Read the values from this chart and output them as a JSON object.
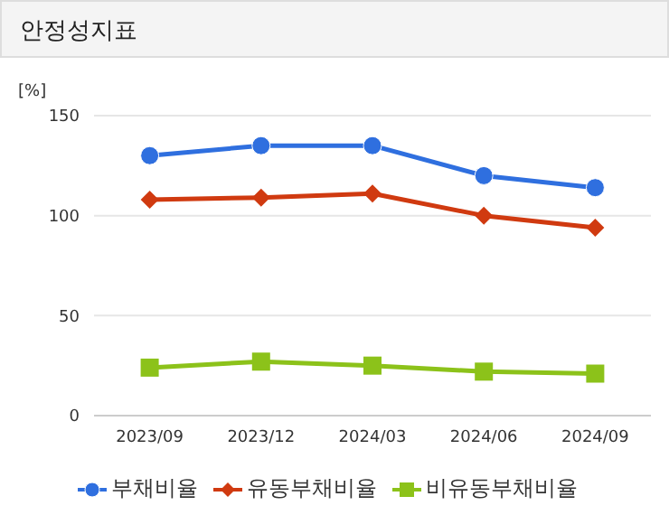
{
  "chart_data": {
    "type": "line",
    "title": "안정성지표",
    "ylabel": "[%]",
    "categories": [
      "2023/09",
      "2023/12",
      "2024/03",
      "2024/06",
      "2024/09"
    ],
    "series": [
      {
        "name": "부채비율",
        "color": "#2f6fdf",
        "marker": "circle",
        "values": [
          130,
          135,
          135,
          120,
          114
        ]
      },
      {
        "name": "유동부채비율",
        "color": "#d03a10",
        "marker": "diamond",
        "values": [
          108,
          109,
          111,
          100,
          94
        ]
      },
      {
        "name": "비유동부채비율",
        "color": "#8cc21a",
        "marker": "square",
        "values": [
          24,
          27,
          25,
          22,
          21
        ]
      }
    ],
    "ylim": [
      0,
      150
    ],
    "yticks": [
      0,
      50,
      100,
      150
    ],
    "grid": "y",
    "legend": "bottom"
  }
}
